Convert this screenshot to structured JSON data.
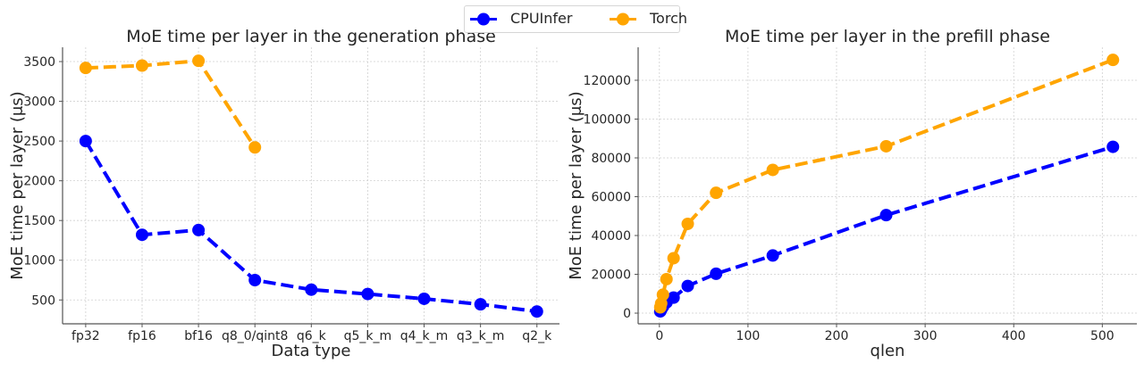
{
  "legend": {
    "placement": "top-center",
    "entries": [
      {
        "name": "CPUInfer",
        "color": "#0000ff"
      },
      {
        "name": "Torch",
        "color": "#ffa500"
      }
    ]
  },
  "chart_data": [
    {
      "type": "line",
      "title": "MoE time per layer in the generation phase",
      "xlabel": "Data type",
      "ylabel": "MoE time per layer (μs)",
      "categories": [
        "fp32",
        "fp16",
        "bf16",
        "q8_0/qint8",
        "q6_k",
        "q5_k_m",
        "q4_k_m",
        "q3_k_m",
        "q2_k"
      ],
      "yticks": [
        500,
        1000,
        1500,
        2000,
        2500,
        3000,
        3500
      ],
      "ylim": [
        200,
        3680
      ],
      "grid": true,
      "series": [
        {
          "name": "CPUInfer",
          "color": "#0000ff",
          "values": [
            2500,
            1320,
            1380,
            750,
            630,
            575,
            515,
            445,
            355
          ]
        },
        {
          "name": "Torch",
          "color": "#ffa500",
          "values": [
            3420,
            3450,
            3510,
            2420,
            null,
            null,
            null,
            null,
            null
          ]
        }
      ]
    },
    {
      "type": "line",
      "title": "MoE time per layer in the prefill phase",
      "xlabel": "qlen",
      "ylabel": "MoE time per layer (μs)",
      "x": [
        1,
        2,
        4,
        8,
        16,
        32,
        64,
        128,
        256,
        512
      ],
      "xticks": [
        0,
        100,
        200,
        300,
        400,
        500
      ],
      "yticks": [
        0,
        20000,
        40000,
        60000,
        80000,
        100000,
        120000
      ],
      "xlim": [
        -24,
        539
      ],
      "ylim": [
        -5500,
        137000
      ],
      "grid": true,
      "series": [
        {
          "name": "CPUInfer",
          "color": "#0000ff",
          "values": [
            900,
            1800,
            3300,
            5500,
            8000,
            14000,
            20300,
            29700,
            50500,
            85700
          ]
        },
        {
          "name": "Torch",
          "color": "#ffa500",
          "values": [
            3000,
            5000,
            9500,
            17500,
            28300,
            46000,
            62000,
            73800,
            86000,
            130500
          ]
        }
      ]
    }
  ]
}
